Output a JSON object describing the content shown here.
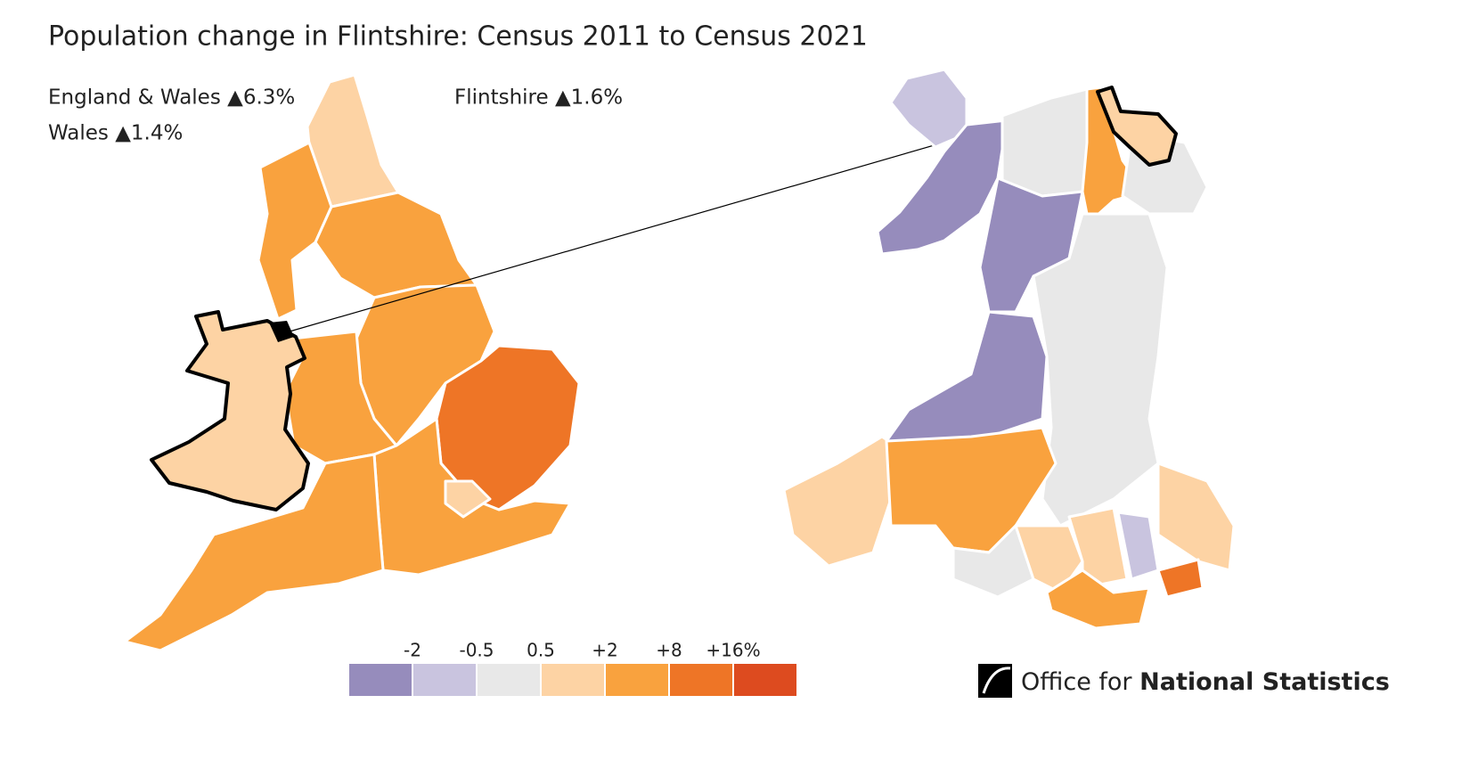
{
  "header": {
    "title": "Population change in Flintshire: Census 2011 to Census 2021"
  },
  "stats": [
    "England & Wales ▲6.3%",
    "Wales ▲1.4%",
    "Flintshire ▲1.6%"
  ],
  "legend": {
    "labels": [
      "-2",
      "-0.5",
      "0.5",
      "+2",
      "+8",
      "+16%"
    ],
    "colors": [
      "#968cbc",
      "#c9c4df",
      "#e8e8e8",
      "#fdd3a4",
      "#f9a23e",
      "#ee7526",
      "#dd4b1f"
    ]
  },
  "logo": {
    "light": "Office for",
    "bold": "National Statistics"
  }
}
